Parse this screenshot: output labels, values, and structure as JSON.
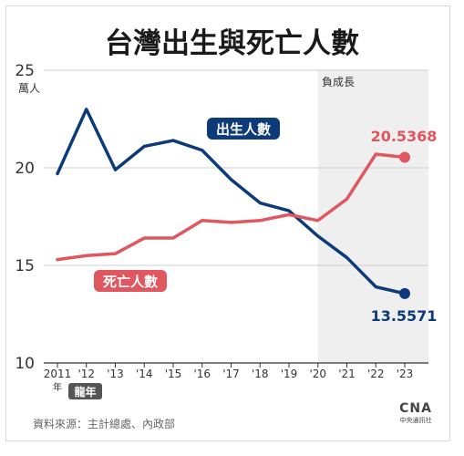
{
  "title": "台灣出生與死亡人數",
  "footer": {
    "source": "資料來源：主計總處、內政部",
    "logo_text": "中央通訊社",
    "logo_mark": "CNA"
  },
  "colors": {
    "births": "#0d3b7a",
    "deaths": "#e0575f",
    "shade": "#efefef"
  },
  "chart_data": {
    "type": "line",
    "title": "台灣出生與死亡人數",
    "ylabel": "萬人",
    "ylim": [
      10,
      25
    ],
    "yticks": [
      "25",
      "20",
      "15",
      "10"
    ],
    "categories": [
      "2011",
      "'12",
      "'13",
      "'14",
      "'15",
      "'16",
      "'17",
      "'18",
      "'19",
      "'20",
      "'21",
      "'22",
      "'23"
    ],
    "x_unit": "年",
    "x_note": "龍年",
    "shaded_region": {
      "from": "'20",
      "to": "'23",
      "label": "負成長"
    },
    "series": [
      {
        "name": "出生人數",
        "color": "#0d3b7a",
        "values": [
          19.7,
          23.0,
          19.9,
          21.1,
          21.4,
          20.9,
          19.4,
          18.2,
          17.8,
          16.5,
          15.4,
          13.9,
          13.5571
        ],
        "end_label": "13.5571"
      },
      {
        "name": "死亡人數",
        "color": "#e0575f",
        "values": [
          15.3,
          15.5,
          15.6,
          16.4,
          16.4,
          17.3,
          17.2,
          17.3,
          17.6,
          17.3,
          18.4,
          20.7,
          20.5368
        ],
        "end_label": "20.5368"
      }
    ]
  }
}
